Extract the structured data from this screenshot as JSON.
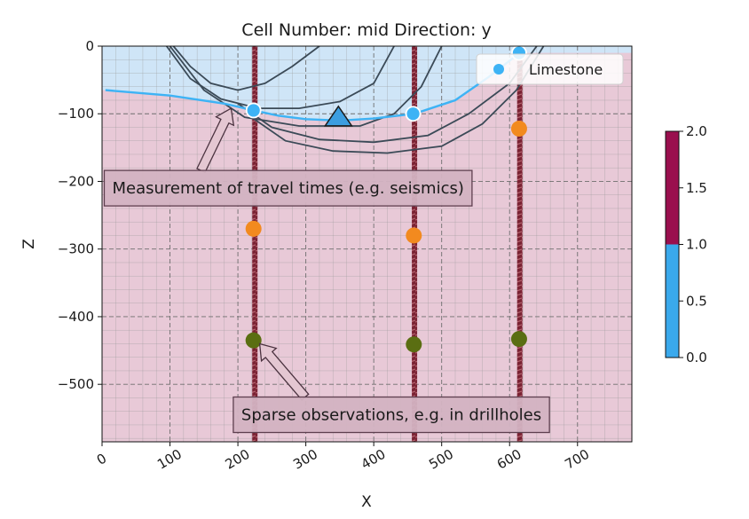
{
  "chart_data": {
    "type": "scatter",
    "title": "Cell Number: mid Direction: y",
    "xlabel": "X",
    "ylabel": "Z",
    "xlim": [
      0,
      780
    ],
    "ylim": [
      -585,
      0
    ],
    "x_ticks": [
      0,
      100,
      200,
      300,
      400,
      500,
      600,
      700
    ],
    "y_ticks": [
      0,
      -100,
      -200,
      -300,
      -400,
      -500
    ],
    "x_tick_labels": [
      "0",
      "100",
      "200",
      "300",
      "400",
      "500",
      "600",
      "700"
    ],
    "y_tick_labels": [
      "0",
      "−100",
      "−200",
      "−300",
      "−400",
      "−500"
    ],
    "grid": true,
    "legend": {
      "position": "top-right",
      "entries": [
        {
          "label": "Limestone",
          "color": "#3db3f5"
        }
      ]
    },
    "colors": {
      "upper_unit": "#cfe5f7",
      "lower_unit": "#e8c9d7",
      "boundary": "#3db3f5",
      "contours": "#3b4a57",
      "drillhole": "#7a2233",
      "orange_points": "#f28a1f",
      "green_points": "#5a6e12",
      "orientation_marker": "#3c9ee0"
    },
    "boundary_line": {
      "name": "Limestone",
      "x": [
        5,
        100,
        180,
        223,
        260,
        300,
        350,
        400,
        460,
        520,
        570,
        615
      ],
      "y": [
        -65,
        -73,
        -85,
        -95,
        -103,
        -108,
        -110,
        -107,
        -100,
        -80,
        -45,
        -10
      ]
    },
    "contour_lines": [
      {
        "x": [
          105,
          130,
          160,
          200,
          240,
          280,
          320
        ],
        "y": [
          0,
          -30,
          -55,
          -65,
          -55,
          -30,
          0
        ]
      },
      {
        "x": [
          95,
          130,
          175,
          230,
          290,
          350,
          400,
          430
        ],
        "y": [
          0,
          -48,
          -78,
          -92,
          -92,
          -82,
          -55,
          0
        ]
      },
      {
        "x": [
          100,
          150,
          210,
          290,
          380,
          430,
          470,
          500
        ],
        "y": [
          0,
          -65,
          -105,
          -118,
          -118,
          -100,
          -60,
          0
        ]
      },
      {
        "x": [
          200,
          250,
          320,
          400,
          480,
          540,
          600,
          640
        ],
        "y": [
          -85,
          -120,
          -138,
          -142,
          -132,
          -100,
          -55,
          0
        ]
      },
      {
        "x": [
          220,
          270,
          340,
          420,
          500,
          560,
          610,
          650
        ],
        "y": [
          -105,
          -140,
          -155,
          -158,
          -148,
          -115,
          -65,
          0
        ]
      }
    ],
    "drillholes": [
      {
        "x": 225,
        "z_top": 0,
        "z_bottom": -585
      },
      {
        "x": 460,
        "z_top": 0,
        "z_bottom": -585
      },
      {
        "x": 615,
        "z_top": 0,
        "z_bottom": -585
      }
    ],
    "surface_points": {
      "Limestone": [
        {
          "x": 223,
          "y": -95
        },
        {
          "x": 458,
          "y": -100
        },
        {
          "x": 614,
          "y": -10
        }
      ],
      "orange": [
        {
          "x": 223,
          "y": -270
        },
        {
          "x": 459,
          "y": -280
        },
        {
          "x": 614,
          "y": -122
        }
      ],
      "green": [
        {
          "x": 223,
          "y": -435
        },
        {
          "x": 459,
          "y": -441
        },
        {
          "x": 614,
          "y": -433
        }
      ]
    },
    "orientation": {
      "x": 348,
      "y": -110
    },
    "annotations": [
      {
        "text": "Measurement of travel times (e.g. seismics)",
        "x": 15,
        "y": -210,
        "arrow_to_x": 190,
        "arrow_to_y": -92
      },
      {
        "text": "Sparse observations, e.g. in drillholes",
        "x": 205,
        "y": -545,
        "arrow_to_x": 232,
        "arrow_to_y": -440
      }
    ],
    "colorbar": {
      "ticks": [
        0.0,
        0.5,
        1.0,
        1.5,
        2.0
      ],
      "tick_labels": [
        "0.0",
        "0.5",
        "1.0",
        "1.5",
        "2.0"
      ],
      "segments": [
        {
          "from": 0.0,
          "to": 1.0,
          "color": "#3aa9ec"
        },
        {
          "from": 1.0,
          "to": 2.0,
          "color": "#9a0f4e"
        }
      ]
    }
  }
}
